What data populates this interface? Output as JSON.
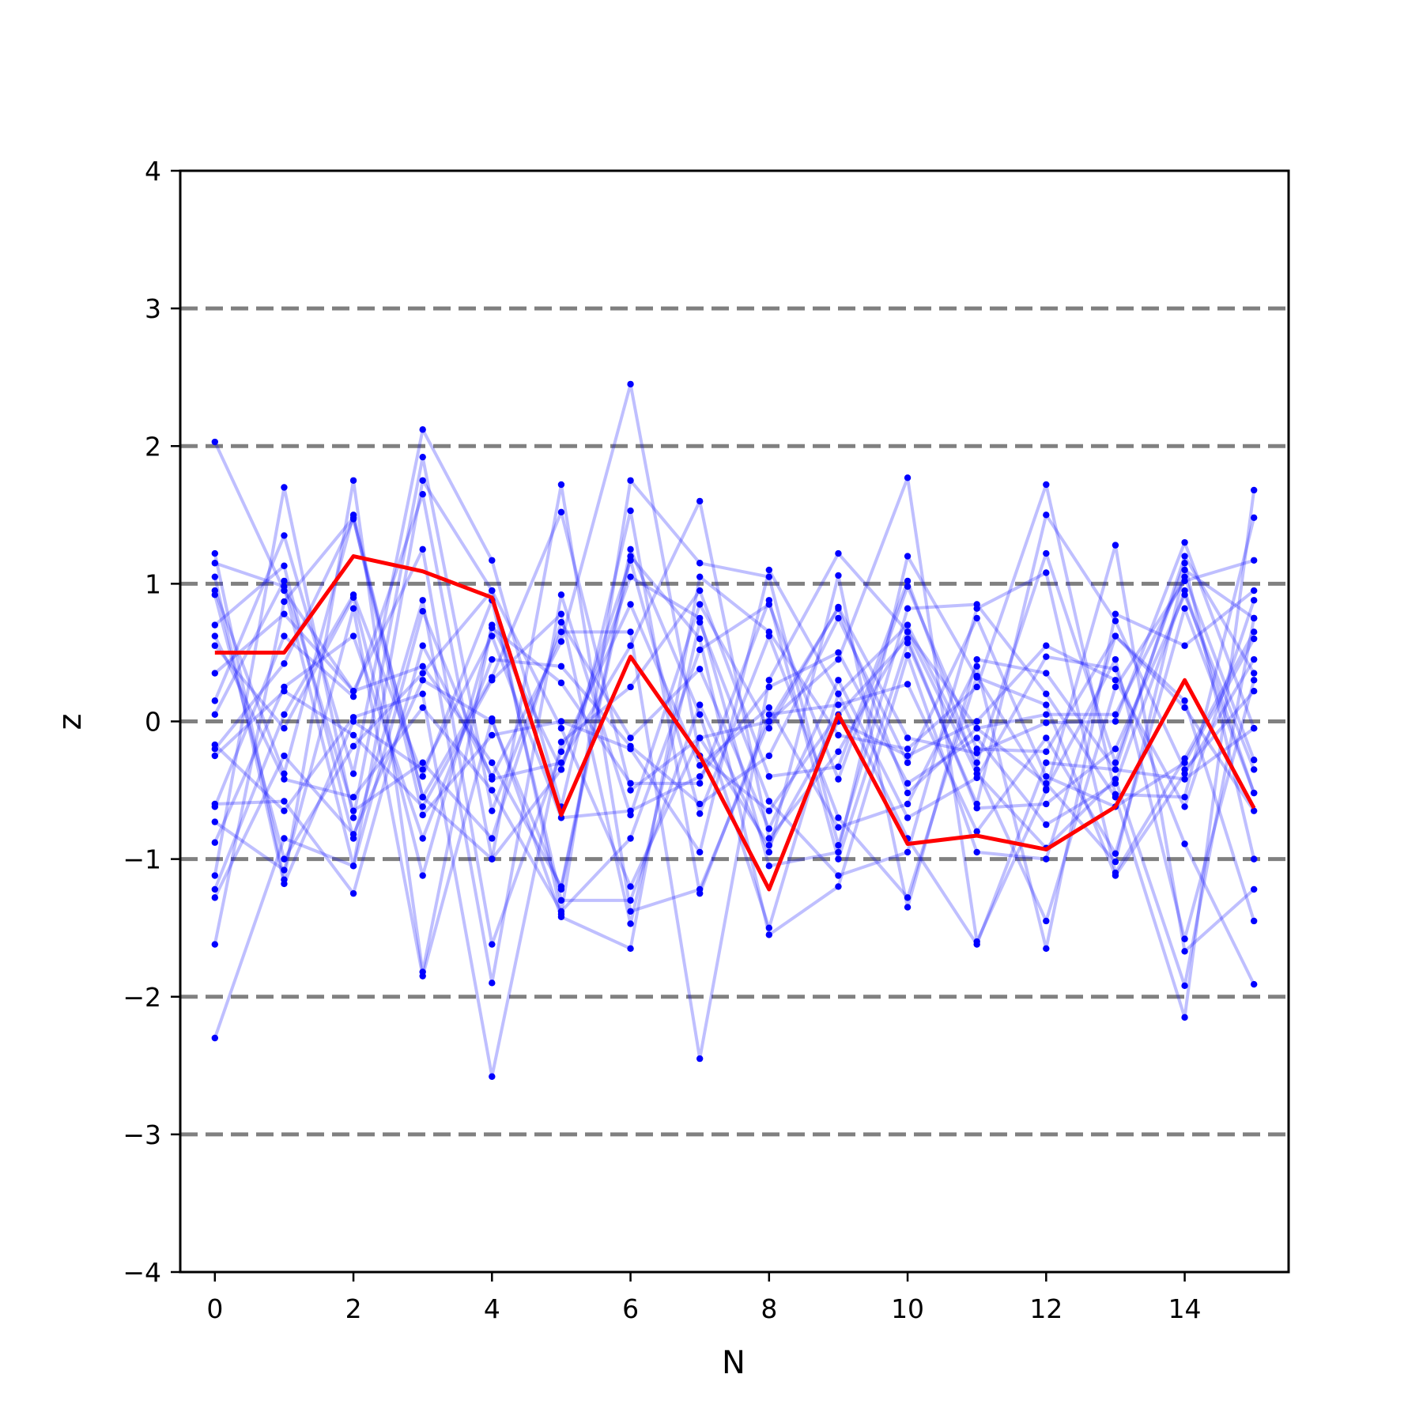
{
  "chart_data": {
    "type": "line",
    "title": "",
    "xlabel": "N",
    "ylabel": "z",
    "xlim": [
      -0.5,
      15.5
    ],
    "ylim": [
      -4,
      4
    ],
    "x_ticks": [
      0,
      2,
      4,
      6,
      8,
      10,
      12,
      14
    ],
    "x_tick_labels": [
      "0",
      "2",
      "4",
      "6",
      "8",
      "10",
      "12",
      "14"
    ],
    "y_ticks": [
      -4,
      -3,
      -2,
      -1,
      0,
      1,
      2,
      3,
      4
    ],
    "y_tick_labels": [
      "−4",
      "−3",
      "−2",
      "−1",
      "0",
      "1",
      "2",
      "3",
      "4"
    ],
    "reference_lines": {
      "y": [
        -3,
        -2,
        -1,
        0,
        1,
        2,
        3
      ],
      "style": "dashed",
      "color": "#808080"
    },
    "grid": false,
    "legend": "none",
    "colors": {
      "samples": "#0000ff",
      "highlight": "#ff0000",
      "reference": "#808080"
    },
    "x": [
      0,
      1,
      2,
      3,
      4,
      5,
      6,
      7,
      8,
      9,
      10,
      11,
      12,
      13,
      14,
      15
    ],
    "highlight_series": {
      "values": [
        0.5,
        0.5,
        1.2,
        1.09,
        0.9,
        -0.68,
        0.47,
        -0.25,
        -1.22,
        0.05,
        -0.89,
        -0.83,
        -0.93,
        -0.62,
        0.3,
        -0.63
      ]
    },
    "sample_series": [
      {
        "values": [
          2.03,
          0.95,
          0.22,
          0.4,
          -0.3,
          -1.2,
          1.25,
          0.05,
          -1.5,
          0.2,
          0.7,
          -0.3,
          1.22,
          -0.3,
          1.15,
          -1.0
        ]
      },
      {
        "values": [
          1.22,
          -1.15,
          1.75,
          -1.82,
          0.7,
          -0.35,
          1.17,
          -0.67,
          0.62,
          -0.7,
          -1.28,
          0.33,
          -0.49,
          0.45,
          -1.58,
          0.3
        ]
      },
      {
        "values": [
          1.15,
          0.98,
          -1.05,
          1.75,
          0.95,
          -1.4,
          1.75,
          1.15,
          1.05,
          -0.9,
          0.82,
          0.85,
          0.2,
          -0.55,
          -2.15,
          1.68
        ]
      },
      {
        "values": [
          0.95,
          -0.38,
          1.5,
          -0.55,
          -1.0,
          1.72,
          -1.38,
          -1.22,
          0.0,
          0.45,
          1.77,
          -1.6,
          -0.5,
          1.28,
          -1.67,
          -1.22
        ]
      },
      {
        "values": [
          0.7,
          1.13,
          -0.85,
          0.88,
          -1.9,
          0.92,
          -0.68,
          0.85,
          -0.05,
          0.83,
          -0.12,
          -0.23,
          -0.01,
          0.0,
          1.3,
          -0.05
        ]
      },
      {
        "values": [
          0.55,
          -0.05,
          0.9,
          -1.12,
          0.68,
          0.28,
          -0.45,
          -0.45,
          0.88,
          -1.0,
          0.57,
          -0.6,
          1.5,
          0.73,
          -0.35,
          0.22
        ]
      },
      {
        "values": [
          0.35,
          0.78,
          0.22,
          1.25,
          -1.62,
          -0.22,
          0.85,
          -0.32,
          0.1,
          -0.77,
          -0.6,
          0.4,
          -1.65,
          0.78,
          0.55,
          0.95
        ]
      },
      {
        "values": [
          0.15,
          1.35,
          -0.38,
          2.12,
          1.17,
          -0.62,
          1.53,
          -1.25,
          0.05,
          0.12,
          0.27,
          -0.8,
          -0.12,
          -0.96,
          0.82,
          -0.52
        ]
      },
      {
        "values": [
          0.05,
          1.02,
          -0.65,
          -0.3,
          -0.85,
          0.72,
          -0.12,
          0.38,
          -0.78,
          0.3,
          -0.7,
          -0.41,
          0.47,
          0.38,
          -0.89,
          -1.91
        ]
      },
      {
        "values": [
          -0.17,
          -0.65,
          0.03,
          0.2,
          -2.58,
          -0.15,
          0.25,
          0.95,
          -0.4,
          -0.33,
          1.02,
          -0.35,
          -1.45,
          0.25,
          1.02,
          1.17
        ]
      },
      {
        "values": [
          -0.25,
          0.22,
          -0.1,
          -0.62,
          0.3,
          0.78,
          -1.47,
          0.72,
          -0.58,
          -1.12,
          -0.95,
          0.82,
          1.08,
          -1.1,
          -0.27,
          0.65
        ]
      },
      {
        "values": [
          -0.6,
          -0.58,
          -1.25,
          0.55,
          -0.4,
          0.58,
          2.45,
          -0.25,
          -0.65,
          0.05,
          0.6,
          -0.63,
          -0.6,
          -0.2,
          0.92,
          -0.35
        ]
      },
      {
        "values": [
          -0.73,
          -1.08,
          0.82,
          -1.85,
          0.02,
          -1.42,
          -1.65,
          1.05,
          0.65,
          -0.1,
          -0.2,
          0.25,
          1.72,
          -0.53,
          -0.55,
          1.48
        ]
      },
      {
        "values": [
          -1.12,
          1.7,
          -0.7,
          1.92,
          -0.65,
          0.65,
          0.65,
          -2.45,
          0.3,
          1.22,
          0.65,
          -0.05,
          -0.45,
          -1.02,
          1.1,
          0.75
        ]
      },
      {
        "values": [
          -1.22,
          0.05,
          0.92,
          -0.4,
          0.88,
          -1.3,
          -1.3,
          0.12,
          -0.95,
          1.06,
          -1.35,
          0.45,
          0.35,
          -0.35,
          -0.42,
          -0.05
        ]
      },
      {
        "values": [
          -1.28,
          -0.25,
          -0.82,
          0.3,
          0.0,
          -1.22,
          1.2,
          0.6,
          -1.55,
          -1.2,
          0.48,
          -0.95,
          -1.0,
          0.62,
          0.15,
          -1.45
        ]
      },
      {
        "values": [
          -1.62,
          0.87,
          1.48,
          -0.68,
          -0.1,
          0.0,
          -0.2,
          -0.95,
          1.1,
          0.2,
          -0.85,
          -1.62,
          -0.3,
          -0.35,
          1.2,
          0.35
        ]
      },
      {
        "values": [
          -2.3,
          -0.85,
          -1.05,
          0.8,
          -0.42,
          -0.3,
          0.55,
          1.6,
          -0.85,
          -0.22,
          0.65,
          -0.38,
          -0.92,
          -0.42,
          -1.92,
          0.75
        ]
      },
      {
        "values": [
          0.92,
          -1.0,
          -0.18,
          0.35,
          0.95,
          -0.05,
          -1.2,
          -0.12,
          0.0,
          0.82,
          -0.52,
          -0.05,
          0.05,
          0.05,
          1.05,
          -0.28
        ]
      },
      {
        "values": [
          -0.62,
          0.62,
          0.18,
          1.65,
          -1.0,
          -0.35,
          1.05,
          0.75,
          -1.05,
          -0.95,
          1.2,
          0.32,
          0.12,
          -1.12,
          -0.38,
          0.45
        ]
      },
      {
        "values": [
          1.05,
          -1.18,
          0.0,
          -0.35,
          0.62,
          -0.7,
          -0.65,
          -0.4,
          0.25,
          0.5,
          -0.45,
          -0.12,
          -0.75,
          -0.45,
          0.95,
          -0.52
        ]
      },
      {
        "values": [
          -0.2,
          0.42,
          1.47,
          -0.55,
          0.32,
          1.52,
          -0.5,
          -0.12,
          -0.9,
          0.0,
          -0.25,
          0.0,
          0.55,
          0.3,
          -0.62,
          0.88
        ]
      },
      {
        "values": [
          0.62,
          -0.42,
          -0.55,
          0.1,
          -0.5,
          -1.38,
          -0.85,
          0.52,
          0.85,
          -0.42,
          0.98,
          -0.2,
          -0.22,
          0.62,
          0.1,
          -0.65
        ]
      },
      {
        "values": [
          -0.88,
          0.25,
          0.62,
          -0.85,
          0.45,
          0.4,
          -0.18,
          -0.6,
          -0.25,
          0.75,
          -0.3,
          0.75,
          -0.4,
          -0.62,
          -0.3,
          0.6
        ]
      }
    ]
  }
}
